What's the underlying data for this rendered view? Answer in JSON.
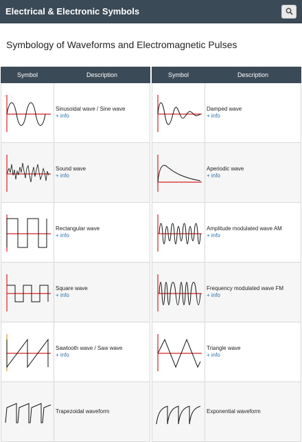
{
  "header": {
    "title": "Electrical & Electronic Symbols",
    "search_icon": "search-icon"
  },
  "page": {
    "title": "Symbology of Waveforms and Electromagnetic Pulses"
  },
  "table": {
    "col_symbol": "Symbol",
    "col_description": "Description",
    "info_label": "+ info"
  },
  "left_rows": [
    {
      "name": "Sinusoidal wave / Sine wave",
      "icon": "sine-wave-icon"
    },
    {
      "name": "Sound wave",
      "icon": "sound-wave-icon"
    },
    {
      "name": "Rectangular wave",
      "icon": "rectangular-wave-icon"
    },
    {
      "name": "Square wave",
      "icon": "square-wave-icon"
    },
    {
      "name": "Sawtooth wave / Saw wave",
      "icon": "sawtooth-wave-icon"
    },
    {
      "name": "Trapezoidal waveform",
      "icon": "trapezoidal-wave-icon"
    }
  ],
  "right_rows": [
    {
      "name": "Damped wave",
      "icon": "damped-wave-icon"
    },
    {
      "name": "Aperiodic wave",
      "icon": "aperiodic-wave-icon"
    },
    {
      "name": "Amplitude modulated wave AM",
      "icon": "am-wave-icon"
    },
    {
      "name": "Frequency modulated wave FM",
      "icon": "fm-wave-icon"
    },
    {
      "name": "Triangle wave",
      "icon": "triangle-wave-icon"
    },
    {
      "name": "Exponential waveform",
      "icon": "exponential-wave-icon"
    }
  ],
  "colors": {
    "header_bg": "#3b4a57",
    "axis_red": "#d22222",
    "link_blue": "#2a6fa8"
  }
}
